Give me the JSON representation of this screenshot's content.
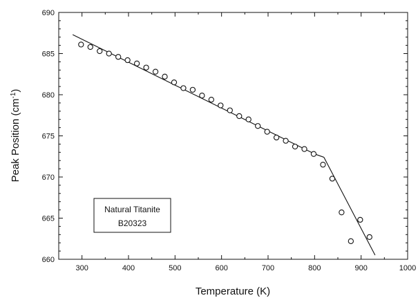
{
  "chart_data": {
    "type": "scatter",
    "xlabel": "Temperature  (K)",
    "ylabel": "Peak Position  (cm",
    "ylabel_sup": "-1",
    "ylabel_suffix": ")",
    "xlim": [
      250,
      1000
    ],
    "ylim": [
      660,
      690
    ],
    "xticks": [
      "300",
      "400",
      "500",
      "600",
      "700",
      "800",
      "900",
      "1000"
    ],
    "yticks": [
      "660",
      "665",
      "670",
      "675",
      "680",
      "685",
      "690"
    ],
    "legend": {
      "placement": "lower-left",
      "lines": [
        "Natural Titanite",
        "B20323"
      ]
    },
    "series": [
      {
        "marker": "open-circle",
        "x": [
          298,
          318,
          338,
          358,
          378,
          398,
          418,
          438,
          458,
          478,
          498,
          518,
          538,
          558,
          578,
          598,
          618,
          638,
          658,
          678,
          698,
          718,
          738,
          758,
          778,
          798,
          818,
          838,
          858,
          878,
          898,
          918
        ],
        "y": [
          686.1,
          685.8,
          685.3,
          685.0,
          684.6,
          684.2,
          683.8,
          683.3,
          682.8,
          682.2,
          681.5,
          680.8,
          680.6,
          679.9,
          679.4,
          678.7,
          678.1,
          677.4,
          677.0,
          676.2,
          675.5,
          674.8,
          674.4,
          673.7,
          673.4,
          672.8,
          671.5,
          669.8,
          665.7,
          662.2,
          664.8,
          662.7
        ]
      }
    ],
    "fit_lines": [
      {
        "x": [
          280,
          800
        ],
        "y": [
          687.3,
          672.8
        ]
      },
      {
        "x": [
          800,
          820
        ],
        "y": [
          672.8,
          672.4
        ]
      },
      {
        "x": [
          820,
          930
        ],
        "y": [
          672.4,
          660.5
        ]
      }
    ],
    "colors": {
      "ink": "#111111",
      "background": "#ffffff"
    }
  }
}
